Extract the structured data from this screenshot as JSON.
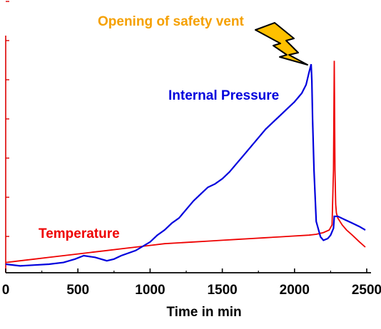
{
  "chart_data": {
    "type": "line",
    "title": "",
    "xlabel": "Time in min",
    "ylabel": "",
    "xlim": [
      0,
      2560
    ],
    "x_ticks": [
      0,
      500,
      1000,
      1500,
      2000,
      2500
    ],
    "x_tick_labels": [
      "0",
      "500",
      "1000",
      "1500",
      "2000",
      "2500"
    ],
    "y_axis": {
      "tick_labels_visible": false,
      "tick_count": 7,
      "color": "#dd0000"
    },
    "grid": false,
    "legend": "none",
    "series": [
      {
        "name": "Internal Pressure",
        "color": "#0000dd",
        "x": [
          0,
          100,
          200,
          300,
          400,
          480,
          540,
          620,
          700,
          750,
          800,
          900,
          1000,
          1050,
          1100,
          1150,
          1200,
          1250,
          1300,
          1350,
          1400,
          1450,
          1500,
          1550,
          1600,
          1650,
          1700,
          1750,
          1800,
          1850,
          1900,
          1950,
          2000,
          2050,
          2080,
          2100,
          2115,
          2120,
          2125,
          2135,
          2150,
          2180,
          2200,
          2230,
          2250,
          2270,
          2275,
          2300,
          2350,
          2400,
          2450,
          2490
        ],
        "y": [
          0.05,
          0.04,
          0.045,
          0.05,
          0.06,
          0.08,
          0.1,
          0.09,
          0.07,
          0.08,
          0.1,
          0.13,
          0.18,
          0.22,
          0.25,
          0.29,
          0.32,
          0.37,
          0.42,
          0.46,
          0.5,
          0.52,
          0.55,
          0.59,
          0.64,
          0.69,
          0.74,
          0.79,
          0.84,
          0.88,
          0.92,
          0.96,
          1.0,
          1.05,
          1.1,
          1.17,
          1.22,
          1.12,
          0.9,
          0.6,
          0.3,
          0.21,
          0.19,
          0.2,
          0.22,
          0.26,
          0.33,
          0.33,
          0.31,
          0.29,
          0.27,
          0.25
        ]
      },
      {
        "name": "Temperature",
        "color": "#ee0000",
        "x": [
          0,
          100,
          200,
          300,
          400,
          500,
          600,
          700,
          800,
          900,
          1000,
          1100,
          1200,
          1300,
          1400,
          1500,
          1600,
          1700,
          1800,
          1900,
          2000,
          2100,
          2150,
          2200,
          2240,
          2260,
          2270,
          2275,
          2280,
          2285,
          2290,
          2300,
          2330,
          2360,
          2400,
          2450,
          2490
        ],
        "y": [
          0.06,
          0.07,
          0.08,
          0.09,
          0.1,
          0.11,
          0.12,
          0.13,
          0.14,
          0.15,
          0.16,
          0.17,
          0.175,
          0.18,
          0.185,
          0.19,
          0.195,
          0.2,
          0.205,
          0.21,
          0.215,
          0.22,
          0.225,
          0.235,
          0.25,
          0.28,
          0.6,
          1.24,
          0.6,
          0.4,
          0.35,
          0.32,
          0.28,
          0.25,
          0.22,
          0.18,
          0.15
        ]
      }
    ],
    "annotations": [
      {
        "id": "pressure_label",
        "text": "Internal Pressure",
        "color": "#0000dd"
      },
      {
        "id": "temperature_label",
        "text": "Temperature",
        "color": "#ee0000"
      },
      {
        "id": "vent_label",
        "text": "Opening of safety vent",
        "color": "#f5a000"
      }
    ],
    "lightning_icon": {
      "name": "lightning-bolt-icon",
      "fill": "#ffc000",
      "stroke": "#000000"
    }
  }
}
